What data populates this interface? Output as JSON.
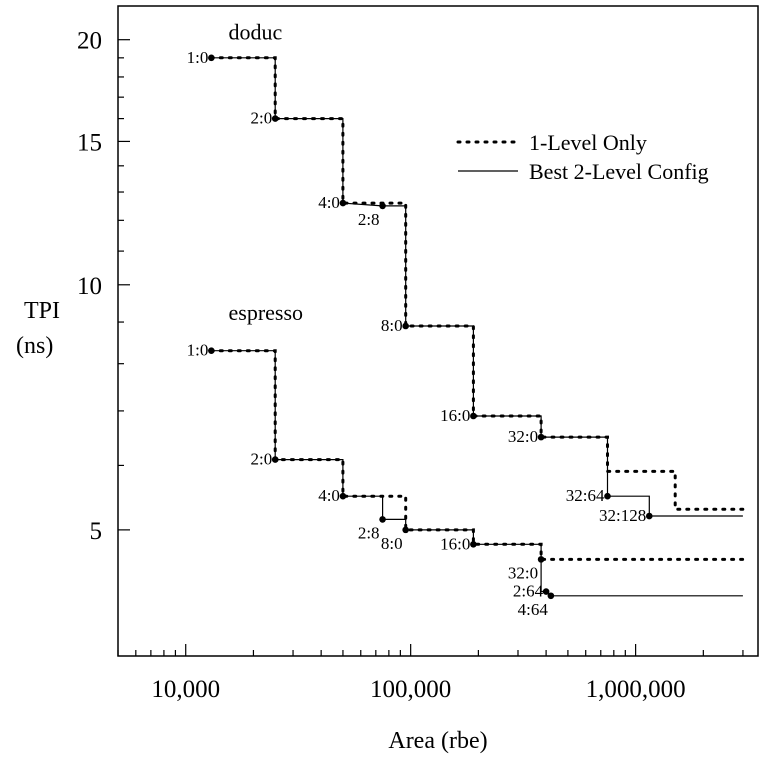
{
  "chart_data": {
    "type": "line",
    "xlabel": "Area (rbe)",
    "ylabel": [
      "TPI",
      "(ns)"
    ],
    "x_scale": "log",
    "y_scale": "log",
    "xlim": [
      5000,
      3500000
    ],
    "ylim": [
      3.5,
      22
    ],
    "x_ticks": [
      {
        "value": 10000,
        "label": "10,000"
      },
      {
        "value": 100000,
        "label": "100,000"
      },
      {
        "value": 1000000,
        "label": "1,000,000"
      }
    ],
    "y_ticks": [
      {
        "value": 5,
        "label": "5"
      },
      {
        "value": 10,
        "label": "10"
      },
      {
        "value": 15,
        "label": "15"
      },
      {
        "value": 20,
        "label": "20"
      }
    ],
    "y_minor_ticks": [
      6,
      7,
      8,
      9,
      11,
      12,
      13,
      14,
      16,
      17,
      18,
      19
    ],
    "legend": {
      "position": "upper-right",
      "entries": [
        {
          "label": "1-Level Only",
          "style": "dotted"
        },
        {
          "label": "Best 2-Level Config",
          "style": "solid"
        }
      ]
    },
    "series": [
      {
        "name": "doduc",
        "config": "1-Level Only",
        "style": "dotted",
        "x": [
          13000,
          25000,
          25000,
          50000,
          50000,
          95000,
          95000,
          190000,
          190000,
          380000,
          380000,
          750000,
          750000,
          1500000,
          1500000,
          3000000
        ],
        "y": [
          19,
          19,
          16,
          16,
          12.6,
          12.6,
          8.9,
          8.9,
          6.9,
          6.9,
          6.5,
          6.5,
          5.9,
          5.9,
          5.3,
          5.3
        ]
      },
      {
        "name": "doduc",
        "config": "Best 2-Level Config",
        "style": "solid",
        "x": [
          13000,
          25000,
          25000,
          50000,
          50000,
          75000,
          95000,
          95000,
          190000,
          190000,
          380000,
          380000,
          750000,
          750000,
          1150000,
          1150000,
          3000000
        ],
        "y": [
          19,
          19,
          16,
          16,
          12.6,
          12.5,
          12.5,
          8.9,
          8.9,
          6.9,
          6.9,
          6.5,
          6.5,
          5.5,
          5.5,
          5.2,
          5.2
        ]
      },
      {
        "name": "espresso",
        "config": "1-Level Only",
        "style": "dotted",
        "x": [
          13000,
          25000,
          25000,
          50000,
          50000,
          95000,
          95000,
          190000,
          190000,
          380000,
          380000,
          3000000
        ],
        "y": [
          8.3,
          8.3,
          6.1,
          6.1,
          5.5,
          5.5,
          5.0,
          5.0,
          4.8,
          4.8,
          4.6,
          4.6
        ]
      },
      {
        "name": "espresso",
        "config": "Best 2-Level Config",
        "style": "solid",
        "x": [
          13000,
          25000,
          25000,
          50000,
          50000,
          75000,
          75000,
          95000,
          95000,
          190000,
          190000,
          380000,
          380000,
          400000,
          420000,
          3000000
        ],
        "y": [
          8.3,
          8.3,
          6.1,
          6.1,
          5.5,
          5.5,
          5.15,
          5.15,
          5.0,
          5.0,
          4.8,
          4.8,
          4.2,
          4.2,
          4.15,
          4.15
        ]
      }
    ],
    "series_labels": [
      {
        "text": "doduc",
        "x": 15500,
        "y": 20.0
      },
      {
        "text": "espresso",
        "x": 15500,
        "y": 9.05
      }
    ],
    "annotations": [
      {
        "text": "1:0",
        "x": 13000,
        "y": 19,
        "side": "left"
      },
      {
        "text": "2:0",
        "x": 25000,
        "y": 16,
        "side": "left"
      },
      {
        "text": "4:0",
        "x": 50000,
        "y": 12.6,
        "side": "left"
      },
      {
        "text": "2:8",
        "x": 75000,
        "y": 12.5,
        "side": "below-left"
      },
      {
        "text": "8:0",
        "x": 95000,
        "y": 8.9,
        "side": "left"
      },
      {
        "text": "16:0",
        "x": 190000,
        "y": 6.9,
        "side": "left"
      },
      {
        "text": "32:0",
        "x": 380000,
        "y": 6.5,
        "side": "left"
      },
      {
        "text": "32:64",
        "x": 750000,
        "y": 5.5,
        "side": "left"
      },
      {
        "text": "32:128",
        "x": 1150000,
        "y": 5.2,
        "side": "left"
      },
      {
        "text": "1:0",
        "x": 13000,
        "y": 8.3,
        "side": "left"
      },
      {
        "text": "2:0",
        "x": 25000,
        "y": 6.1,
        "side": "left"
      },
      {
        "text": "4:0",
        "x": 50000,
        "y": 5.5,
        "side": "left"
      },
      {
        "text": "2:8",
        "x": 75000,
        "y": 5.15,
        "side": "below-left"
      },
      {
        "text": "8:0",
        "x": 95000,
        "y": 5.0,
        "side": "below-left"
      },
      {
        "text": "16:0",
        "x": 190000,
        "y": 4.8,
        "side": "left"
      },
      {
        "text": "32:0",
        "x": 380000,
        "y": 4.6,
        "side": "below-left"
      },
      {
        "text": "2:64",
        "x": 400000,
        "y": 4.2,
        "side": "left"
      },
      {
        "text": "4:64",
        "x": 420000,
        "y": 4.15,
        "side": "below-left"
      }
    ]
  }
}
